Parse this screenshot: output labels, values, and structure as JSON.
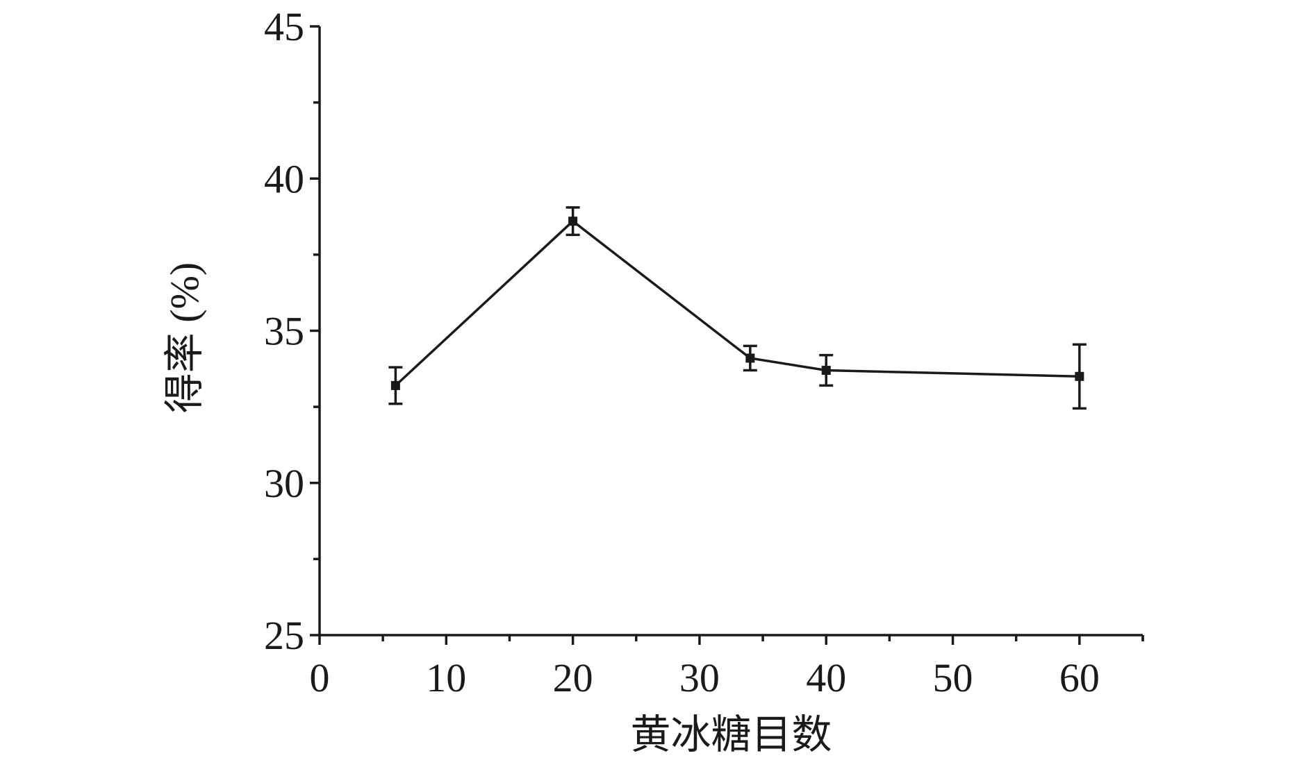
{
  "chart_data": {
    "type": "line",
    "title": "",
    "xlabel": "黄冰糖目数",
    "ylabel": "得率 (%)",
    "xlim": [
      0,
      65
    ],
    "ylim": [
      25,
      45
    ],
    "x_ticks": [
      0,
      10,
      20,
      30,
      40,
      50,
      60
    ],
    "x_ticks_labels": [
      "0",
      "10",
      "20",
      "30",
      "40",
      "50",
      "60"
    ],
    "y_ticks": [
      25,
      30,
      35,
      40,
      45
    ],
    "y_ticks_labels": [
      "25",
      "30",
      "35",
      "40",
      "45"
    ],
    "grid": false,
    "series": [
      {
        "x": [
          6,
          20,
          34,
          40,
          60
        ],
        "y": [
          33.2,
          38.6,
          34.1,
          33.7,
          33.5
        ],
        "error": [
          0.6,
          0.45,
          0.4,
          0.5,
          1.05
        ],
        "color": "#1a1a1a",
        "marker": "square"
      }
    ]
  }
}
